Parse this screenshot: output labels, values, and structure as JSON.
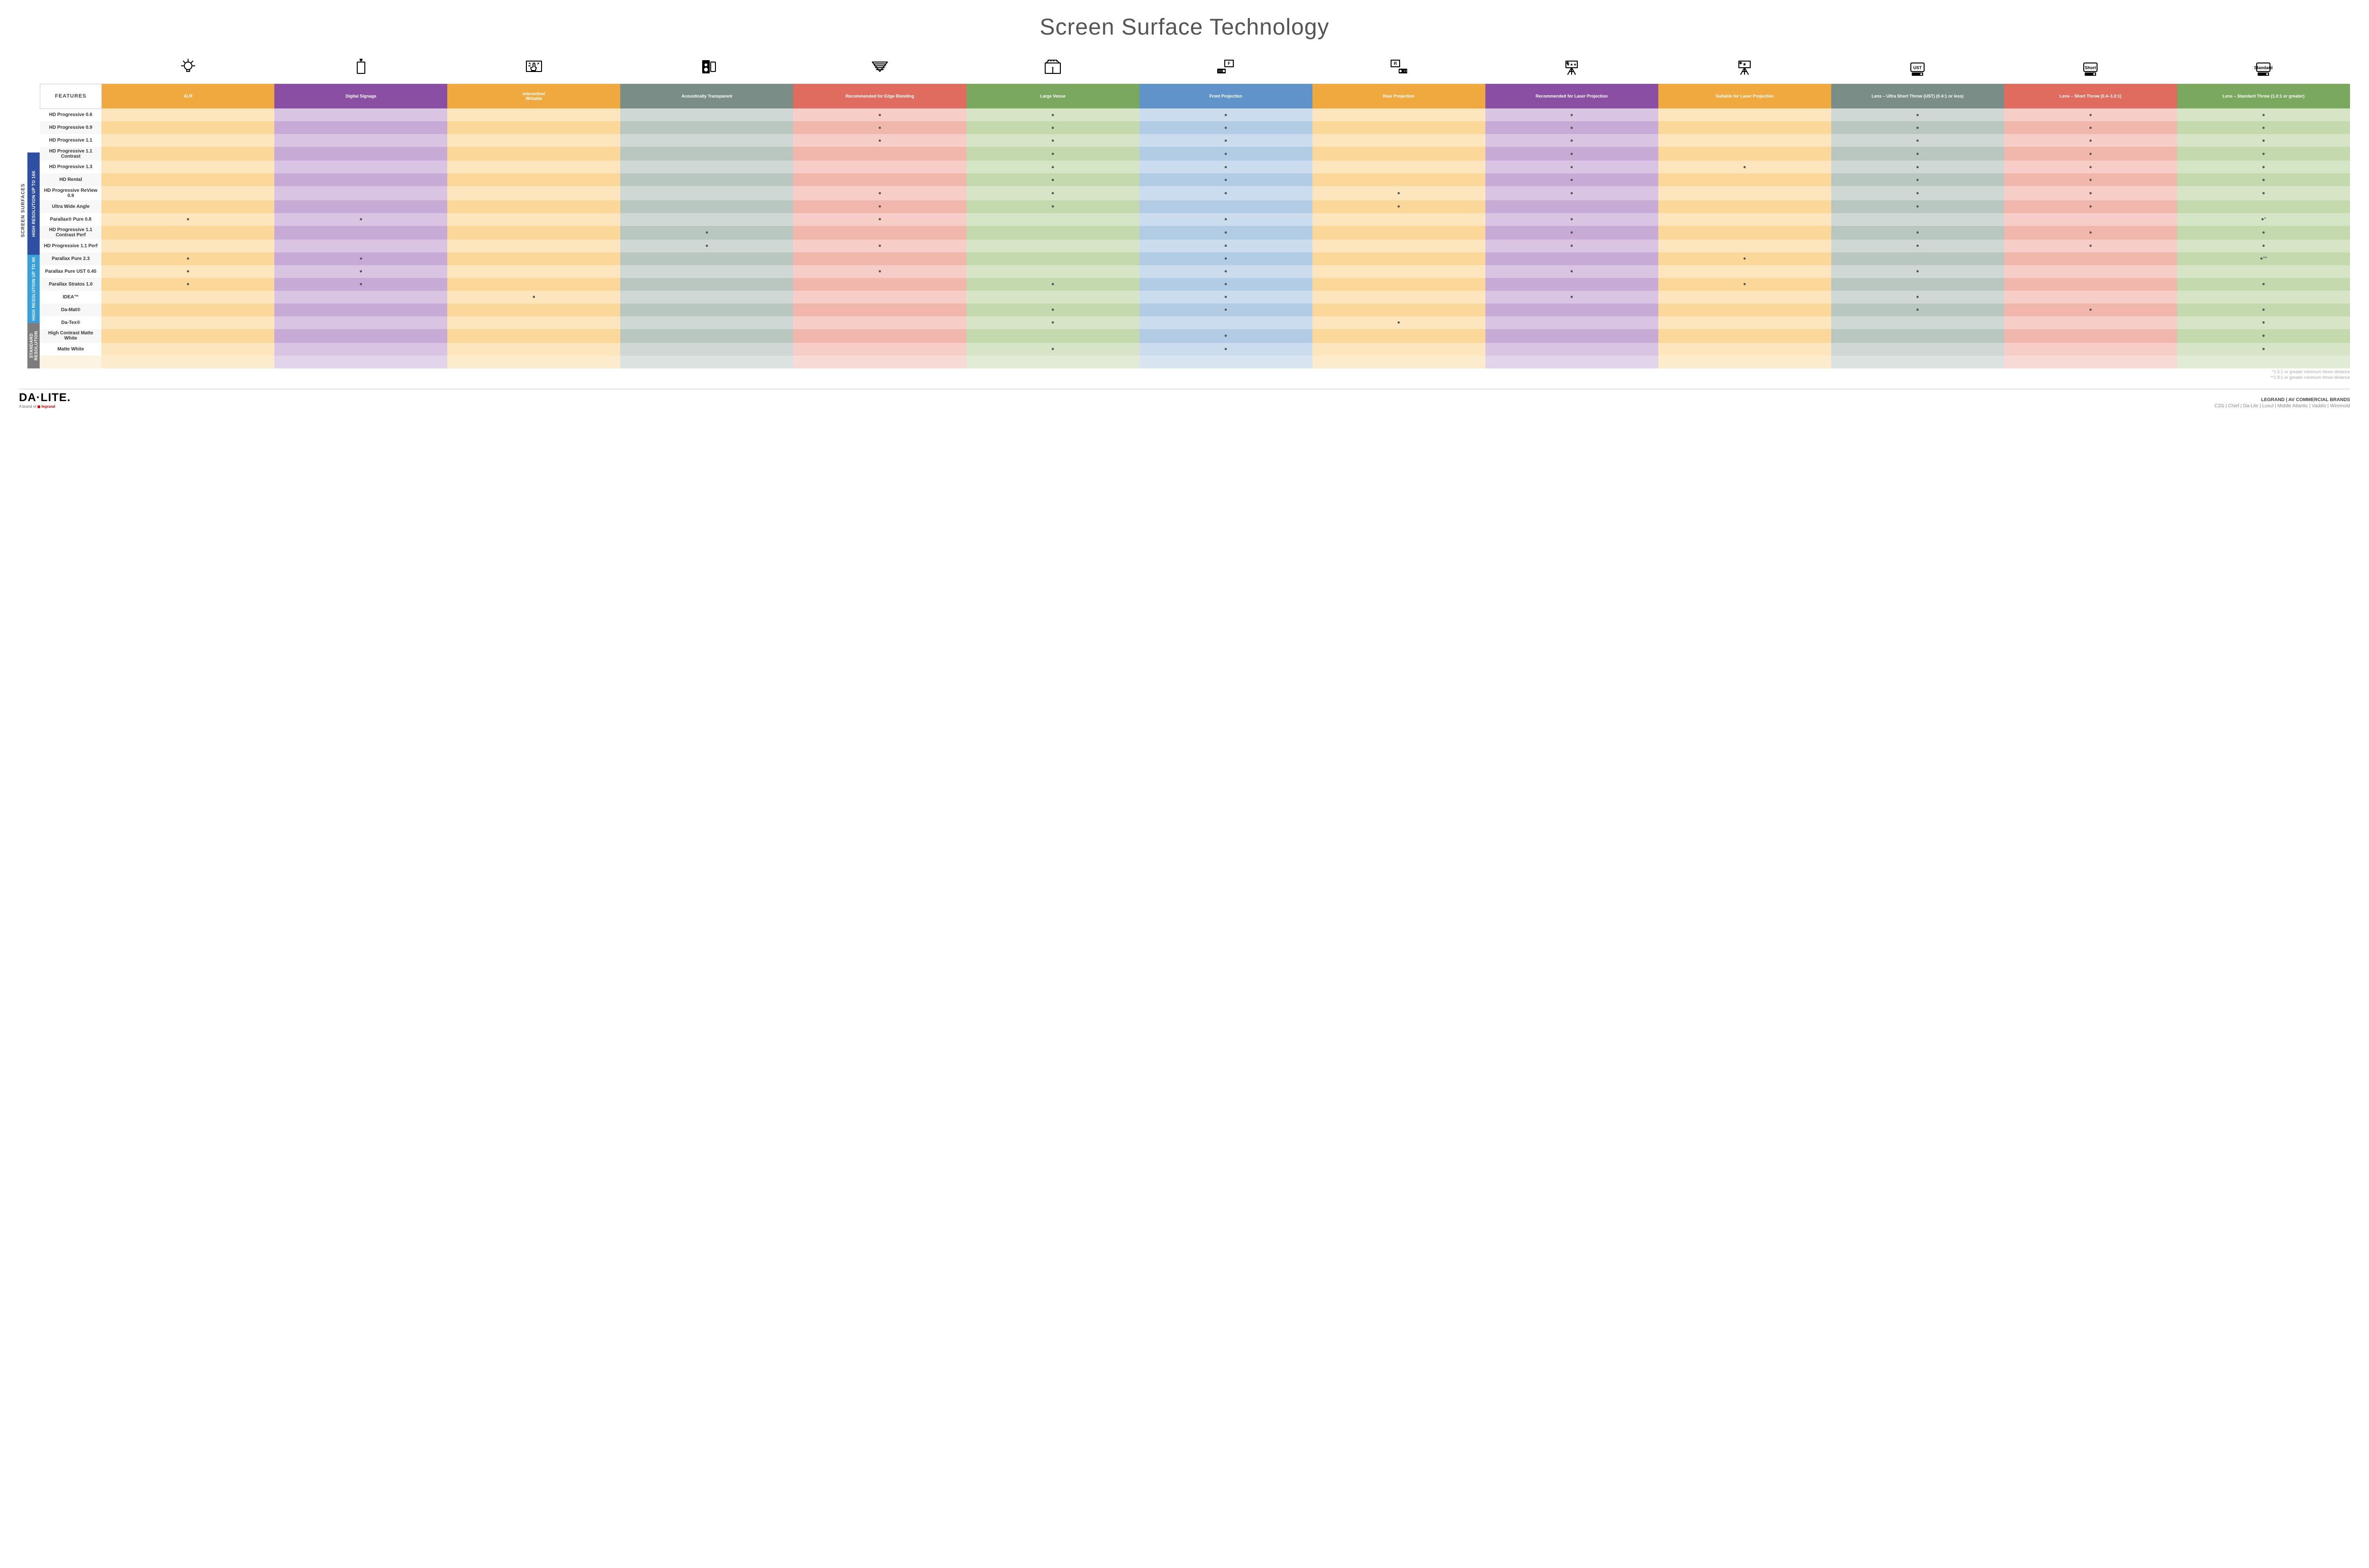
{
  "title": "Screen Surface Technology",
  "features_header": "FEATURES",
  "columns": [
    {
      "key": "alr",
      "label": "ALR",
      "color": "#f0a93f"
    },
    {
      "key": "signage",
      "label": "Digital Signage",
      "color": "#8a4fa3"
    },
    {
      "key": "interactive",
      "label": "Interactive/\nWritable",
      "color": "#f0a93f"
    },
    {
      "key": "acoustic",
      "label": "Acoustically Transparent",
      "color": "#7a8d87"
    },
    {
      "key": "edge",
      "label": "Recommended for Edge Blending",
      "color": "#e06b5f"
    },
    {
      "key": "large",
      "label": "Large Venue",
      "color": "#7aa85e"
    },
    {
      "key": "front",
      "label": "Front Projection",
      "color": "#5f93c9"
    },
    {
      "key": "rear",
      "label": "Rear Projection",
      "color": "#f0a93f"
    },
    {
      "key": "rec_laser",
      "label": "Recommended for Laser Projection",
      "color": "#8a4fa3"
    },
    {
      "key": "suit_laser",
      "label": "Suitable for Laser Projection",
      "color": "#f0a93f"
    },
    {
      "key": "ust",
      "label": "Lens – Ultra Short Throw (UST) (0.4:1 or less)",
      "color": "#7a8d87"
    },
    {
      "key": "short",
      "label": "Lens – Short Throw (0.4–1.0:1)",
      "color": "#e06b5f"
    },
    {
      "key": "std",
      "label": "Lens – Standard Throw (1.0:1 or greater)",
      "color": "#7aa85e"
    }
  ],
  "col_tints": {
    "feat": [
      "#fff",
      "#f7f7f7"
    ],
    "alr": [
      "#fde6bd",
      "#fbd89a"
    ],
    "signage": [
      "#d9c4e3",
      "#c7abd6"
    ],
    "interactive": [
      "#fde6bd",
      "#fbd89a"
    ],
    "acoustic": [
      "#cfd8d4",
      "#bac7c1"
    ],
    "edge": [
      "#f6cec7",
      "#f1b6ac"
    ],
    "large": [
      "#d6e5c6",
      "#c4d9ae"
    ],
    "front": [
      "#cadcee",
      "#b2cce5"
    ],
    "rear": [
      "#fde6bd",
      "#fbd89a"
    ],
    "rec_laser": [
      "#d9c4e3",
      "#c7abd6"
    ],
    "suit_laser": [
      "#fde6bd",
      "#fbd89a"
    ],
    "ust": [
      "#cfd8d4",
      "#bac7c1"
    ],
    "short": [
      "#f6cec7",
      "#f1b6ac"
    ],
    "std": [
      "#d6e5c6",
      "#c4d9ae"
    ]
  },
  "side_main_label": "SCREEN SURFACES",
  "groups": [
    {
      "label": "HIGH RESOLUTION UP TO 16K",
      "color": "#2f4fa3",
      "rows": 9
    },
    {
      "label": "HIGH RESOLUTION UP TO 4K",
      "color": "#3aa0d8",
      "rows": 6
    },
    {
      "label": "STANDARD RESOLUTION",
      "color": "#7d7d7d",
      "rows": 4
    }
  ],
  "rows": [
    {
      "label": "HD Progressive 0.6",
      "cells": {
        "edge": "●",
        "large": "●",
        "front": "●",
        "rec_laser": "●",
        "ust": "●",
        "short": "●",
        "std": "●"
      }
    },
    {
      "label": "HD Progressive 0.9",
      "cells": {
        "edge": "●",
        "large": "●",
        "front": "●",
        "rec_laser": "●",
        "ust": "●",
        "short": "●",
        "std": "●"
      }
    },
    {
      "label": "HD Progressive 1.1",
      "cells": {
        "edge": "●",
        "large": "●",
        "front": "●",
        "rec_laser": "●",
        "ust": "●",
        "short": "●",
        "std": "●"
      }
    },
    {
      "label": "HD Progressive 1.1 Contrast",
      "cells": {
        "large": "●",
        "front": "●",
        "rec_laser": "●",
        "ust": "●",
        "short": "●",
        "std": "●"
      }
    },
    {
      "label": "HD Progressive 1.3",
      "cells": {
        "large": "●",
        "front": "●",
        "rec_laser": "●",
        "suit_laser": "●",
        "ust": "●",
        "short": "●",
        "std": "●"
      }
    },
    {
      "label": "HD Rental",
      "cells": {
        "large": "●",
        "front": "●",
        "rec_laser": "●",
        "ust": "●",
        "short": "●",
        "std": "●"
      }
    },
    {
      "label": "HD Progressive ReView 0.9",
      "cells": {
        "edge": "●",
        "large": "●",
        "front": "●",
        "rear": "●",
        "rec_laser": "●",
        "ust": "●",
        "short": "●",
        "std": "●"
      }
    },
    {
      "label": "Ultra Wide Angle",
      "cells": {
        "edge": "●",
        "large": "●",
        "rear": "●",
        "ust": "●",
        "short": "●"
      }
    },
    {
      "label": "Parallax® Pure 0.8",
      "cells": {
        "alr": "●",
        "signage": "●",
        "edge": "●",
        "front": "●",
        "rec_laser": "●",
        "std": "●*"
      }
    },
    {
      "label": "HD Progressive 1.1 Contrast Perf",
      "cells": {
        "acoustic": "●",
        "front": "●",
        "rec_laser": "●",
        "ust": "●",
        "short": "●",
        "std": "●"
      }
    },
    {
      "label": "HD Progressive 1.1 Perf",
      "cells": {
        "acoustic": "●",
        "edge": "●",
        "front": "●",
        "rec_laser": "●",
        "ust": "●",
        "short": "●",
        "std": "●"
      }
    },
    {
      "label": "Parallax Pure 2.3",
      "cells": {
        "alr": "●",
        "signage": "●",
        "front": "●",
        "suit_laser": "●",
        "std": "●**"
      }
    },
    {
      "label": "Parallax Pure UST 0.45",
      "cells": {
        "alr": "●",
        "signage": "●",
        "edge": "●",
        "front": "●",
        "rec_laser": "●",
        "ust": "●"
      }
    },
    {
      "label": "Parallax Stratos 1.0",
      "cells": {
        "alr": "●",
        "signage": "●",
        "large": "●",
        "front": "●",
        "suit_laser": "●",
        "std": "●"
      }
    },
    {
      "label": "IDEA™",
      "cells": {
        "interactive": "●",
        "front": "●",
        "rec_laser": "●",
        "ust": "●"
      }
    },
    {
      "label": "Da-Mat®",
      "cells": {
        "large": "●",
        "front": "●",
        "ust": "●",
        "short": "●",
        "std": "●"
      }
    },
    {
      "label": "Da-Tex®",
      "cells": {
        "large": "●",
        "rear": "●",
        "std": "●"
      }
    },
    {
      "label": "High Contrast Matte White",
      "cells": {
        "front": "●",
        "std": "●"
      }
    },
    {
      "label": "Matte White",
      "cells": {
        "large": "●",
        "front": "●",
        "std": "●"
      }
    }
  ],
  "footnotes": [
    "*1.5:1 or greater minimum throw distance",
    "**1.8:1 or greater minimum throw distance"
  ],
  "footer": {
    "logo": "DA·LITE.",
    "logo_sub_prefix": "A brand of ",
    "logo_sub_brand": "legrand",
    "right1": "LEGRAND | AV COMMERCIAL BRANDS",
    "right2": "C2G  |  Chief  |  Da-Lite  |  Luxul  |  Middle Atlantic  |  Vaddio  |  Wiremold"
  },
  "icons": [
    "bulb",
    "signage",
    "touch",
    "speaker",
    "blend",
    "venue",
    "front_proj",
    "rear_proj",
    "rec_laser",
    "suit_laser",
    "ust_proj",
    "short_proj",
    "std_proj"
  ]
}
